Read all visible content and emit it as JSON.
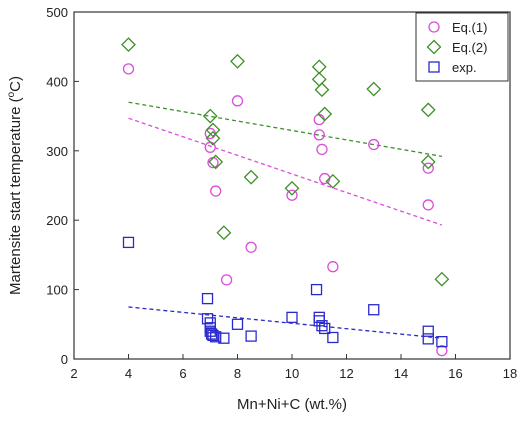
{
  "chart_data": {
    "type": "scatter",
    "xlabel": "Mn+Ni+C (wt.%)",
    "ylabel_main": "Martensite start temperature (",
    "ylabel_sup": "o",
    "ylabel_end": "C)",
    "xlim": [
      2,
      18
    ],
    "ylim": [
      0,
      500
    ],
    "xticks": [
      "2",
      "4",
      "6",
      "8",
      "10",
      "12",
      "14",
      "16",
      "18"
    ],
    "yticks": [
      "0",
      "100",
      "200",
      "300",
      "400",
      "500"
    ],
    "grid": false,
    "legend_position": "top-right",
    "series": [
      {
        "name": "Eq.(1)",
        "marker": "circle",
        "color": "#d94fd9",
        "x": [
          4.0,
          7.0,
          7.0,
          7.1,
          7.2,
          7.6,
          8.0,
          8.5,
          10.0,
          11.0,
          11.0,
          11.1,
          11.2,
          11.5,
          13.0,
          15.0,
          15.0,
          15.5
        ],
        "y": [
          418,
          325,
          305,
          283,
          242,
          114,
          372,
          161,
          236,
          345,
          323,
          302,
          260,
          133,
          309,
          275,
          222,
          12
        ],
        "trend": [
          [
            4,
            347
          ],
          [
            15.5,
            193
          ]
        ]
      },
      {
        "name": "Eq.(2)",
        "marker": "diamond",
        "color": "#3f8f2a",
        "x": [
          4.0,
          7.0,
          7.1,
          7.1,
          7.2,
          7.5,
          8.0,
          8.5,
          10.0,
          11.0,
          11.0,
          11.1,
          11.2,
          11.5,
          13.0,
          15.0,
          15.0,
          15.5
        ],
        "y": [
          453,
          350,
          330,
          318,
          284,
          182,
          429,
          262,
          246,
          421,
          403,
          388,
          353,
          256,
          389,
          359,
          284,
          115
        ],
        "trend": [
          [
            4,
            370
          ],
          [
            15.5,
            292
          ]
        ]
      },
      {
        "name": "exp.",
        "marker": "square",
        "color": "#2a2acb",
        "x": [
          4.0,
          6.9,
          6.9,
          7.0,
          7.0,
          7.0,
          7.05,
          7.1,
          7.2,
          7.5,
          8.0,
          8.5,
          10.0,
          10.9,
          11.0,
          11.0,
          11.1,
          11.2,
          11.5,
          13.0,
          15.0,
          15.0,
          15.5
        ],
        "y": [
          168,
          87,
          58,
          52,
          45,
          40,
          36,
          34,
          32,
          30,
          50,
          33,
          60,
          100,
          60,
          55,
          48,
          44,
          31,
          71,
          40,
          29,
          25
        ],
        "trend": [
          [
            4,
            75
          ],
          [
            15.5,
            30
          ]
        ]
      }
    ]
  }
}
